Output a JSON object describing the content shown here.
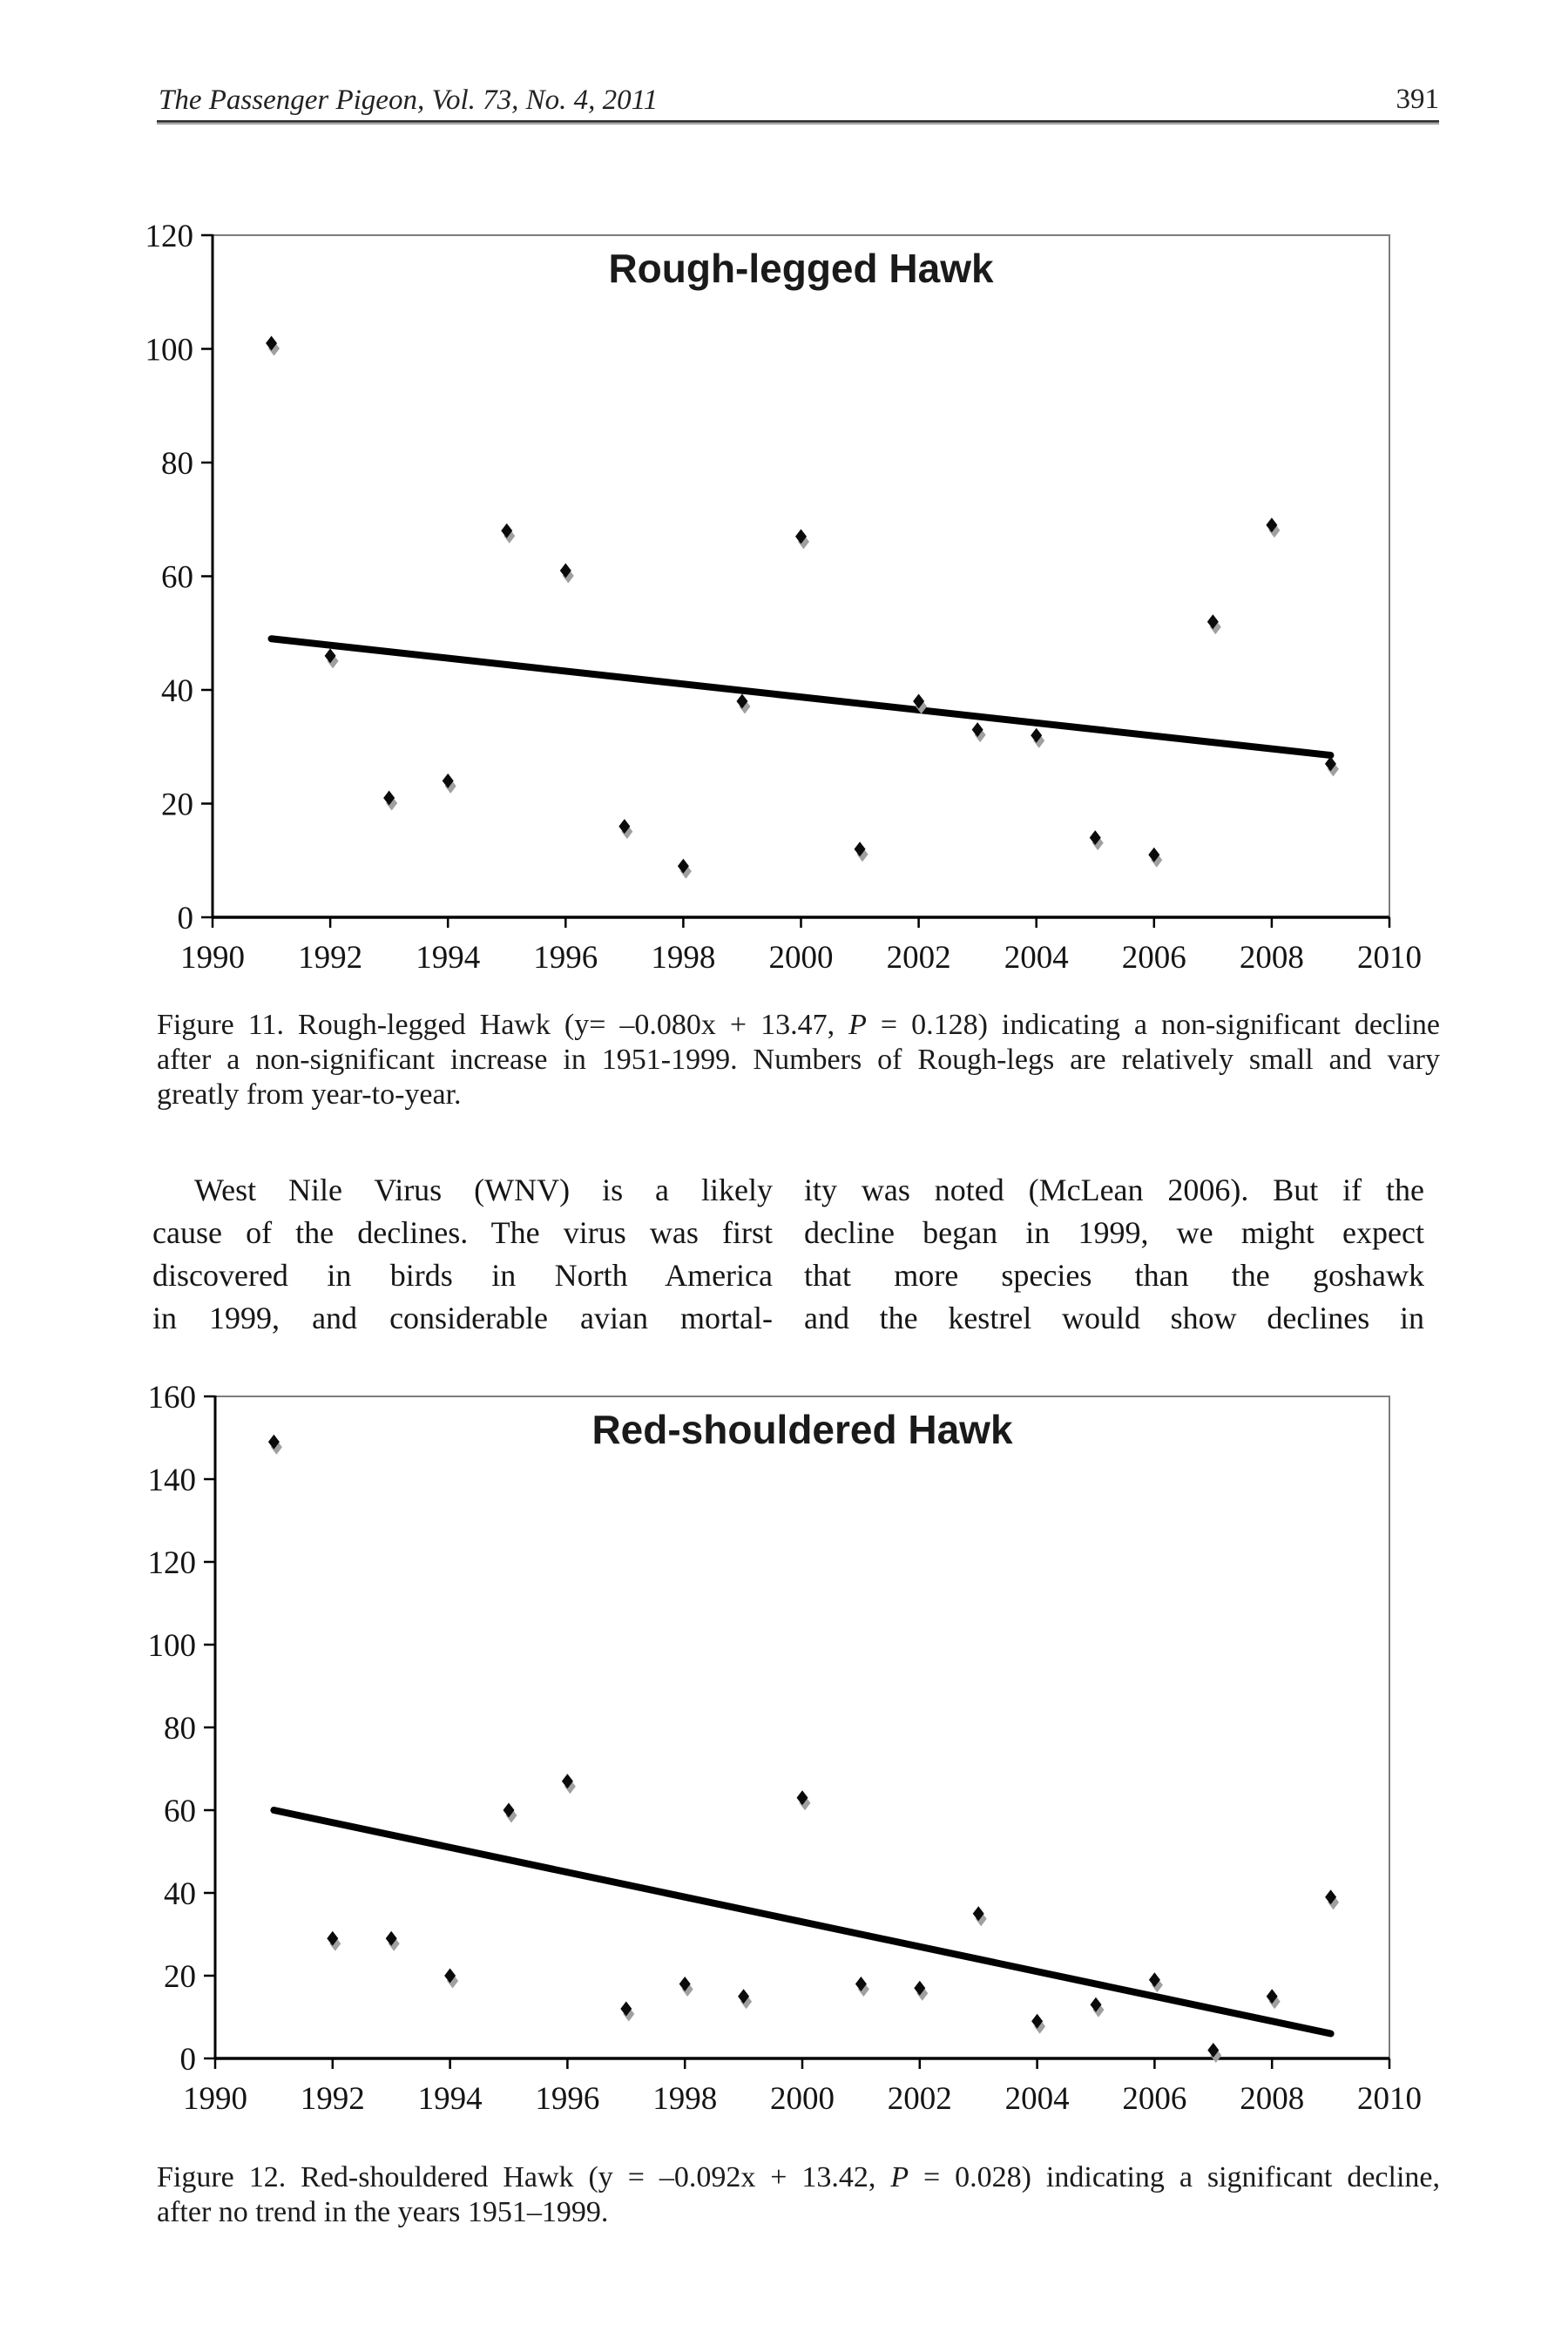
{
  "header": {
    "journal_line": "The Passenger Pigeon, Vol. 73, No. 4, 2011",
    "page_number": "391"
  },
  "chart_data": [
    {
      "type": "scatter",
      "title": "Rough-legged Hawk",
      "xlabel": "",
      "ylabel": "",
      "x": [
        1991,
        1992,
        1993,
        1994,
        1995,
        1996,
        1997,
        1998,
        1999,
        2000,
        2001,
        2002,
        2003,
        2004,
        2005,
        2006,
        2007,
        2008,
        2009
      ],
      "y": [
        101,
        46,
        21,
        24,
        68,
        61,
        16,
        9,
        38,
        67,
        12,
        38,
        33,
        32,
        14,
        11,
        52,
        69,
        27
      ],
      "xlim": [
        1990,
        2010
      ],
      "ylim": [
        0,
        120
      ],
      "x_ticks": [
        1990,
        1992,
        1994,
        1996,
        1998,
        2000,
        2002,
        2004,
        2006,
        2008,
        2010
      ],
      "y_ticks": [
        0,
        20,
        40,
        60,
        80,
        100,
        120
      ],
      "grid": false,
      "legend": false,
      "marker": "diamond",
      "marker_color": "#0b0b0b",
      "marker_shadow_color": "#a0a0a0",
      "trendline": {
        "x1": 1991,
        "y1": 49,
        "x2": 2009,
        "y2": 28.5,
        "color": "#000000",
        "equation": "y= –0.080x + 13.47",
        "P_value": "0.128"
      }
    },
    {
      "type": "scatter",
      "title": "Red-shouldered Hawk",
      "xlabel": "",
      "ylabel": "",
      "x": [
        1991,
        1992,
        1993,
        1994,
        1995,
        1996,
        1997,
        1998,
        1999,
        2000,
        2001,
        2002,
        2003,
        2004,
        2005,
        2006,
        2007,
        2008,
        2009
      ],
      "y": [
        149,
        29,
        29,
        20,
        60,
        67,
        12,
        18,
        15,
        63,
        18,
        17,
        35,
        9,
        13,
        19,
        2,
        15,
        39
      ],
      "xlim": [
        1990,
        2010
      ],
      "ylim": [
        0,
        160
      ],
      "x_ticks": [
        1990,
        1992,
        1994,
        1996,
        1998,
        2000,
        2002,
        2004,
        2006,
        2008,
        2010
      ],
      "y_ticks": [
        0,
        20,
        40,
        60,
        80,
        100,
        120,
        140,
        160
      ],
      "grid": false,
      "legend": false,
      "marker": "diamond",
      "marker_color": "#0b0b0b",
      "marker_shadow_color": "#a0a0a0",
      "trendline": {
        "x1": 1991,
        "y1": 60,
        "x2": 2009,
        "y2": 6,
        "color": "#000000",
        "equation": "y = –0.092x + 13.42",
        "P_value": "0.028"
      }
    }
  ],
  "figures": [
    {
      "caption_lines": [
        [
          {
            "t": "Figure 11. Rough-legged Hawk (y= –0.080x + 13.47, "
          },
          {
            "t": "P",
            "i": true
          },
          {
            "t": " = 0.128) indicating a non-significant decline"
          }
        ],
        [
          {
            "t": "after a non-significant increase in 1951-1999. Numbers of Rough-legs are relatively small and vary"
          }
        ],
        [
          {
            "t": "greatly from year-to-year."
          }
        ]
      ]
    },
    {
      "caption_lines": [
        [
          {
            "t": "Figure 12. Red-shouldered Hawk (y = –0.092x + 13.42, "
          },
          {
            "t": "P",
            "i": true
          },
          {
            "t": " = 0.028) indicating a significant decline,"
          }
        ],
        [
          {
            "t": "after no trend in the years 1951–1999."
          }
        ]
      ]
    }
  ],
  "body": {
    "left_lines": [
      "West Nile Virus (WNV) is a likely",
      "cause of the declines. The virus was first",
      "discovered in birds in North America",
      "in 1999, and considerable avian mortal-"
    ],
    "right_lines": [
      "ity was noted (McLean 2006). But if the",
      "decline began in 1999, we might expect",
      "that more species than the goshawk",
      "and the kestrel would show declines in"
    ]
  }
}
